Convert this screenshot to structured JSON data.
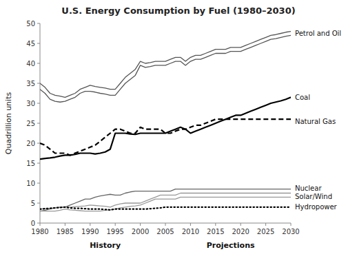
{
  "chart_data": {
    "type": "line",
    "title": "U.S. Energy Consumption by Fuel (1980–2030)",
    "ylabel": "Quadrillion units",
    "x": [
      1980,
      1981,
      1982,
      1983,
      1984,
      1985,
      1986,
      1987,
      1988,
      1989,
      1990,
      1991,
      1992,
      1993,
      1994,
      1995,
      1996,
      1997,
      1998,
      1999,
      2000,
      2001,
      2002,
      2003,
      2004,
      2005,
      2006,
      2007,
      2008,
      2009,
      2010,
      2011,
      2012,
      2013,
      2014,
      2015,
      2016,
      2017,
      2018,
      2019,
      2020,
      2021,
      2022,
      2023,
      2024,
      2025,
      2026,
      2027,
      2028,
      2029,
      2030
    ],
    "xlim": [
      1980,
      2030
    ],
    "xticks": [
      1980,
      1985,
      1990,
      1995,
      2000,
      2005,
      2010,
      2015,
      2020,
      2025,
      2030
    ],
    "ylim": [
      0,
      50
    ],
    "yticks": [
      0,
      5,
      10,
      15,
      20,
      25,
      30,
      35,
      40,
      45,
      50
    ],
    "grid": false,
    "series": [
      {
        "color": "#555555",
        "line_style": "solid",
        "values": [
          35.0,
          34.0,
          32.5,
          32.0,
          31.8,
          31.5,
          32.0,
          32.5,
          33.5,
          34.0,
          34.5,
          34.2,
          34.0,
          33.8,
          33.5,
          33.5,
          35.0,
          36.5,
          37.5,
          38.5,
          40.5,
          40.0,
          40.2,
          40.5,
          40.5,
          40.5,
          41.0,
          41.5,
          41.5,
          40.5,
          41.5,
          42.0,
          42.0,
          42.5,
          43.0,
          43.5,
          43.5,
          43.5,
          44.0,
          44.0,
          44.0,
          44.5,
          45.0,
          45.5,
          46.0,
          46.5,
          47.0,
          47.2,
          47.5,
          47.8,
          48.0
        ]
      },
      {
        "color": "#555555",
        "line_style": "solid",
        "values": [
          33.5,
          32.5,
          31.0,
          30.5,
          30.3,
          30.5,
          31.0,
          31.5,
          32.5,
          33.0,
          33.0,
          32.8,
          32.5,
          32.3,
          32.0,
          32.0,
          33.5,
          35.0,
          36.0,
          37.0,
          39.5,
          39.0,
          39.2,
          39.5,
          39.5,
          39.5,
          40.0,
          40.5,
          40.5,
          39.5,
          40.5,
          41.0,
          41.0,
          41.5,
          42.0,
          42.5,
          42.5,
          42.5,
          43.0,
          43.0,
          43.0,
          43.5,
          44.0,
          44.5,
          45.0,
          45.5,
          46.0,
          46.2,
          46.5,
          46.8,
          47.0
        ]
      },
      {
        "color": "#000000",
        "line_style": "solid",
        "values": [
          16.0,
          16.2,
          16.3,
          16.5,
          16.8,
          17.0,
          17.0,
          17.2,
          17.5,
          17.5,
          17.5,
          17.3,
          17.5,
          17.8,
          18.5,
          22.5,
          22.5,
          22.5,
          22.3,
          22.2,
          22.5,
          22.5,
          22.5,
          22.5,
          22.5,
          22.5,
          23.0,
          23.5,
          24.0,
          23.5,
          22.5,
          23.0,
          23.5,
          24.0,
          24.5,
          25.0,
          25.5,
          26.0,
          26.5,
          27.0,
          27.0,
          27.5,
          28.0,
          28.5,
          29.0,
          29.5,
          30.0,
          30.3,
          30.6,
          31.0,
          31.5
        ]
      },
      {
        "color": "#000000",
        "line_style": "dashed",
        "values": [
          20.0,
          19.5,
          18.5,
          17.5,
          17.5,
          17.5,
          17.0,
          17.5,
          18.0,
          18.5,
          19.0,
          19.5,
          20.5,
          21.5,
          22.5,
          23.5,
          23.5,
          23.0,
          22.5,
          22.5,
          24.0,
          23.5,
          23.5,
          23.5,
          23.5,
          22.5,
          22.5,
          23.0,
          23.5,
          23.5,
          24.0,
          24.5,
          24.5,
          25.0,
          25.5,
          26.0,
          26.0,
          26.0,
          26.0,
          26.0,
          26.0,
          26.0,
          26.0,
          26.0,
          26.0,
          26.0,
          26.0,
          26.0,
          26.0,
          26.0,
          26.0
        ]
      },
      {
        "color": "#666666",
        "line_style": "solid",
        "values": [
          3.0,
          3.2,
          3.5,
          3.8,
          4.0,
          4.0,
          4.5,
          5.0,
          5.5,
          6.0,
          6.0,
          6.5,
          6.8,
          7.0,
          7.2,
          7.0,
          7.0,
          7.5,
          7.8,
          8.0,
          8.0,
          8.0,
          8.0,
          8.0,
          8.0,
          8.0,
          8.0,
          8.5,
          8.5,
          8.5,
          8.5,
          8.5,
          8.5,
          8.5,
          8.5,
          8.5,
          8.5,
          8.5,
          8.5,
          8.5,
          8.5,
          8.5,
          8.5,
          8.5,
          8.5,
          8.5,
          8.5,
          8.5,
          8.5,
          8.5,
          8.5
        ]
      },
      {
        "color": "#999999",
        "line_style": "solid",
        "values": [
          3.5,
          3.6,
          3.7,
          3.8,
          3.9,
          4.0,
          4.0,
          4.1,
          4.2,
          4.3,
          4.5,
          4.4,
          4.3,
          4.2,
          4.0,
          4.5,
          4.8,
          5.0,
          5.0,
          5.0,
          5.0,
          5.5,
          6.0,
          6.5,
          7.0,
          7.0,
          7.0,
          7.0,
          7.5,
          7.5,
          7.5,
          7.5,
          7.5,
          7.5,
          7.5,
          7.5,
          7.5,
          7.5,
          7.5,
          7.5,
          7.5,
          7.5,
          7.5,
          7.5,
          7.5,
          7.5,
          7.5,
          7.5,
          7.5,
          7.5,
          7.5
        ]
      },
      {
        "color": "#999999",
        "line_style": "solid",
        "values": [
          3.0,
          3.0,
          3.0,
          3.0,
          3.2,
          3.5,
          3.3,
          3.2,
          3.1,
          3.0,
          3.0,
          3.0,
          3.0,
          3.2,
          3.3,
          3.5,
          3.8,
          4.0,
          4.2,
          4.3,
          4.5,
          5.0,
          5.5,
          6.0,
          6.0,
          6.0,
          6.0,
          6.0,
          6.5,
          6.5,
          6.5,
          6.5,
          6.5,
          6.5,
          6.5,
          6.5,
          6.5,
          6.5,
          6.5,
          6.5,
          6.5,
          6.5,
          6.5,
          6.5,
          6.5,
          6.5,
          6.5,
          6.5,
          6.5,
          6.5,
          6.5
        ]
      },
      {
        "color": "#000000",
        "line_style": "dotted",
        "values": [
          3.5,
          3.6,
          3.7,
          3.8,
          3.9,
          4.0,
          3.8,
          3.7,
          3.7,
          3.6,
          3.5,
          3.5,
          3.5,
          3.4,
          3.3,
          3.5,
          3.5,
          3.5,
          3.5,
          3.5,
          3.5,
          3.5,
          3.6,
          3.7,
          3.8,
          4.0,
          4.0,
          4.0,
          4.0,
          4.0,
          4.0,
          4.0,
          4.0,
          4.0,
          4.0,
          4.0,
          4.0,
          4.0,
          4.0,
          4.0,
          4.0,
          4.0,
          4.0,
          4.0,
          4.0,
          4.0,
          4.0,
          4.0,
          4.0,
          4.0,
          4.0
        ]
      }
    ],
    "annotations": [
      {
        "label": "History",
        "x": 1993
      },
      {
        "label": "Projections",
        "x": 2018
      },
      {
        "label": "Petrol and Oil",
        "x": 2030,
        "y": 47.5
      },
      {
        "label": "Coal",
        "x": 2030,
        "y": 31.5
      },
      {
        "label": "Natural Gas",
        "x": 2030,
        "y": 25.5
      },
      {
        "label": "Nuclear",
        "x": 2030,
        "y": 8.7
      },
      {
        "label": "Solar/Wind",
        "x": 2030,
        "y": 6.7
      },
      {
        "label": "Hydropower",
        "x": 2030,
        "y": 4.0
      }
    ]
  }
}
